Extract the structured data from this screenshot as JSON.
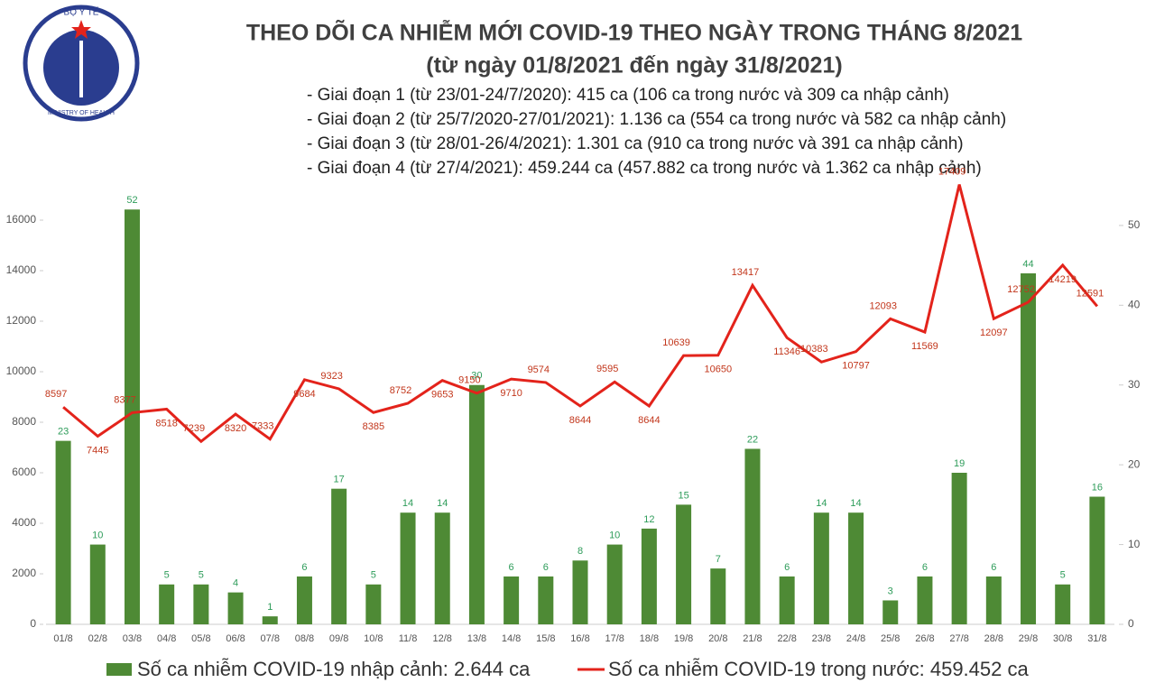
{
  "logo": {
    "top": "BỘ Y TẾ",
    "bottom": "MINISTRY OF HEALTH"
  },
  "chart_data": {
    "type": "bar-line",
    "title": "THEO DÕI CA NHIỄM MỚI COVID-19 THEO NGÀY TRONG THÁNG 8/2021",
    "subtitle": "(từ ngày 01/8/2021 đến ngày 31/8/2021)",
    "annotations": [
      "- Giai đoạn 1 (từ 23/01-24/7/2020): 415 ca (106 ca trong nước và 309 ca nhập cảnh)",
      "- Giai đoạn 2 (từ 25/7/2020-27/01/2021): 1.136 ca (554 ca trong nước và 582 ca nhập cảnh)",
      "- Giai đoạn 3 (từ 28/01-26/4/2021): 1.301 ca (910 ca trong nước và 391 ca nhập cảnh)",
      "- Giai đoạn 4 (từ 27/4/2021): 459.244 ca (457.882 ca trong nước và 1.362 ca nhập cảnh)"
    ],
    "categories": [
      "01/8",
      "02/8",
      "03/8",
      "04/8",
      "05/8",
      "06/8",
      "07/8",
      "08/8",
      "09/8",
      "10/8",
      "11/8",
      "12/8",
      "13/8",
      "14/8",
      "15/8",
      "16/8",
      "17/8",
      "18/8",
      "19/8",
      "20/8",
      "21/8",
      "22/8",
      "23/8",
      "24/8",
      "25/8",
      "26/8",
      "27/8",
      "28/8",
      "29/8",
      "30/8",
      "31/8"
    ],
    "series": [
      {
        "name": "Số ca nhiễm COVID-19 nhập cảnh: 2.644 ca",
        "kind": "bar",
        "axis": "y2",
        "color": "#4e8a35",
        "values": [
          23,
          10,
          52,
          5,
          5,
          4,
          1,
          6,
          17,
          5,
          14,
          14,
          30,
          6,
          6,
          8,
          10,
          12,
          15,
          7,
          22,
          6,
          14,
          14,
          3,
          6,
          19,
          6,
          44,
          5,
          16
        ]
      },
      {
        "name": "Số ca nhiễm COVID-19 trong nước: 459.452 ca",
        "kind": "line",
        "color": "#e3231b",
        "values": [
          8597,
          7445,
          8377,
          8518,
          7239,
          8320,
          7333,
          9684,
          9323,
          8385,
          8752,
          9653,
          9150,
          9710,
          9574,
          8644,
          9595,
          8644,
          10639,
          10650,
          13417,
          11346,
          10383,
          10797,
          12093,
          11569,
          17409,
          12097,
          12752,
          14219,
          12591
        ]
      }
    ],
    "ylim": [
      0,
      18000
    ],
    "yticks": [
      0,
      2000,
      4000,
      6000,
      8000,
      10000,
      12000,
      14000,
      16000
    ],
    "y2lim": [
      0,
      57
    ],
    "y2ticks": [
      0,
      10,
      20,
      30,
      40,
      50
    ]
  }
}
